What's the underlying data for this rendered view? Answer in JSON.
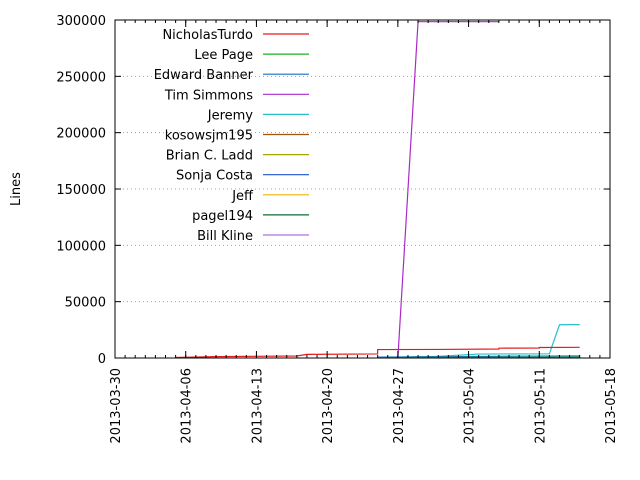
{
  "chart_data": {
    "type": "line",
    "title": "",
    "xlabel": "",
    "ylabel": "Lines",
    "ylim": [
      0,
      300000
    ],
    "xlim": [
      "2013-03-30",
      "2013-05-18"
    ],
    "y_ticks": [
      "0",
      "50000",
      "100000",
      "150000",
      "200000",
      "250000",
      "300000"
    ],
    "x_ticks": [
      "2013-03-30",
      "2013-04-06",
      "2013-04-13",
      "2013-04-20",
      "2013-04-27",
      "2013-05-04",
      "2013-05-11",
      "2013-05-18"
    ],
    "grid": "horizontal dotted",
    "legend_position": "top-left",
    "series": [
      {
        "name": "NicholasTurdo",
        "color": "#e41a1c",
        "points": [
          [
            "2013-04-05",
            500
          ],
          [
            "2013-04-09",
            1200
          ],
          [
            "2013-04-17",
            1800
          ],
          [
            "2013-04-18",
            3200
          ],
          [
            "2013-04-25",
            3600
          ],
          [
            "2013-04-25",
            7500
          ],
          [
            "2013-05-01",
            7600
          ],
          [
            "2013-05-07",
            8000
          ],
          [
            "2013-05-07",
            8700
          ],
          [
            "2013-05-11",
            8900
          ],
          [
            "2013-05-11",
            9300
          ],
          [
            "2013-05-15",
            9500
          ]
        ]
      },
      {
        "name": "Lee Page",
        "color": "#1fb21f",
        "points": [
          [
            "2013-04-25",
            300
          ],
          [
            "2013-04-28",
            500
          ],
          [
            "2013-05-08",
            600
          ],
          [
            "2013-05-15",
            700
          ]
        ]
      },
      {
        "name": "Edward Banner",
        "color": "#1a6fc4",
        "points": [
          [
            "2013-04-25",
            800
          ],
          [
            "2013-05-03",
            1300
          ],
          [
            "2013-05-09",
            1600
          ],
          [
            "2013-05-15",
            1800
          ]
        ]
      },
      {
        "name": "Tim Simmons",
        "color": "#aa2ac8",
        "points": [
          [
            "2013-04-27",
            0
          ],
          [
            "2013-04-29",
            298500
          ],
          [
            "2013-05-07",
            298500
          ]
        ]
      },
      {
        "name": "Jeremy",
        "color": "#24c0c8",
        "points": [
          [
            "2013-04-25",
            400
          ],
          [
            "2013-05-01",
            1500
          ],
          [
            "2013-05-05",
            3500
          ],
          [
            "2013-05-12",
            3700
          ],
          [
            "2013-05-13",
            29500
          ],
          [
            "2013-05-15",
            29600
          ]
        ]
      },
      {
        "name": "kosowsjm195",
        "color": "#a0520e",
        "points": [
          [
            "2013-04-25",
            100
          ],
          [
            "2013-05-15",
            200
          ]
        ]
      },
      {
        "name": "Brian C. Ladd",
        "color": "#a8a400",
        "points": [
          [
            "2013-04-25",
            50
          ],
          [
            "2013-05-15",
            100
          ]
        ]
      },
      {
        "name": "Sonja Costa",
        "color": "#1e50c8",
        "points": [
          [
            "2013-04-25",
            150
          ],
          [
            "2013-05-15",
            250
          ]
        ]
      },
      {
        "name": "Jeff",
        "color": "#f0b400",
        "points": [
          [
            "2013-04-25",
            80
          ],
          [
            "2013-05-15",
            120
          ]
        ]
      },
      {
        "name": "pagel194",
        "color": "#0a6e30",
        "points": [
          [
            "2013-04-25",
            60
          ],
          [
            "2013-05-15",
            90
          ]
        ]
      },
      {
        "name": "Bill Kline",
        "color": "#b070e0",
        "points": [
          [
            "2013-04-25",
            40
          ],
          [
            "2013-05-15",
            70
          ]
        ]
      }
    ]
  }
}
